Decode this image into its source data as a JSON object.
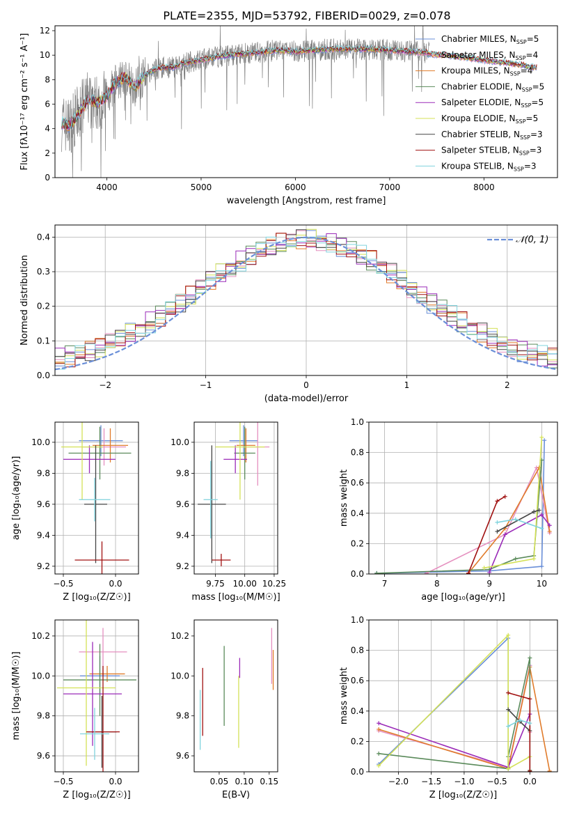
{
  "figure": {
    "title": "PLATE=2355, MJD=53792, FIBERID=0029, z=0.078"
  },
  "chart_data": [
    {
      "id": "spectrum",
      "type": "line",
      "xlabel": "wavelength [Angstrom, rest frame]",
      "ylabel": "Flux [fλ10⁻¹⁷ erg cm⁻² s⁻¹ A⁻¹]",
      "xlim": [
        3450,
        8780
      ],
      "ylim": [
        0,
        12.4
      ],
      "xticks": [
        4000,
        5000,
        6000,
        7000,
        8000
      ],
      "yticks": [
        0,
        2,
        4,
        6,
        8,
        10,
        12
      ],
      "grid": false,
      "legend_position": "right",
      "data_series": {
        "name": "data",
        "color": "#808080"
      },
      "continuum": {
        "x": [
          3520,
          3600,
          3700,
          3800,
          3900,
          4000,
          4100,
          4200,
          4300,
          4400,
          4500,
          4600,
          4700,
          4800,
          5000,
          5200,
          5400,
          5600,
          5800,
          6000,
          6200,
          6400,
          6600,
          6800,
          7000,
          7200,
          7400
        ],
        "y": [
          4.5,
          4.2,
          5.2,
          6.4,
          6.1,
          6.6,
          7.8,
          8.2,
          7.4,
          8.3,
          8.8,
          9.0,
          9.0,
          9.3,
          9.6,
          9.9,
          10.1,
          10.2,
          10.4,
          10.3,
          10.4,
          10.5,
          10.5,
          10.5,
          10.4,
          10.3,
          10.2
        ]
      },
      "model_extension": {
        "x": [
          7400,
          7600,
          7800,
          8000,
          8200,
          8400,
          8500
        ],
        "y": [
          10.1,
          10.0,
          9.8,
          9.6,
          9.4,
          9.2,
          9.0
        ]
      },
      "legend": [
        {
          "label": "Chabrier MILES, N",
          "sub": "SSP",
          "suffix": "=5",
          "color": "#6a8fd8"
        },
        {
          "label": "Salpeter MILES, N",
          "sub": "SSP",
          "suffix": "=4",
          "color": "#e58fbf"
        },
        {
          "label": "Kroupa MILES, N",
          "sub": "SSP",
          "suffix": "=4",
          "color": "#e07b2a"
        },
        {
          "label": "Chabrier ELODIE, N",
          "sub": "SSP",
          "suffix": "=5",
          "color": "#5a8a5a"
        },
        {
          "label": "Salpeter ELODIE, N",
          "sub": "SSP",
          "suffix": "=5",
          "color": "#9a2ab8"
        },
        {
          "label": "Kroupa ELODIE, N",
          "sub": "SSP",
          "suffix": "=5",
          "color": "#d4e157"
        },
        {
          "label": "Chabrier STELIB, N",
          "sub": "SSP",
          "suffix": "=3",
          "color": "#444444"
        },
        {
          "label": "Salpeter STELIB, N",
          "sub": "SSP",
          "suffix": "=3",
          "color": "#a01010"
        },
        {
          "label": "Kroupa STELIB, N",
          "sub": "SSP",
          "suffix": "=3",
          "color": "#7fd3dd"
        }
      ]
    },
    {
      "id": "residuals",
      "type": "line",
      "xlabel": "(data-model)/error",
      "ylabel": "Normed distribution",
      "xlim": [
        -2.5,
        2.5
      ],
      "ylim": [
        0,
        0.435
      ],
      "xticks": [
        -2,
        -1,
        0,
        1,
        2
      ],
      "xtick_labels": [
        "−2",
        "−1",
        "0",
        "1",
        "2"
      ],
      "yticks": [
        0.0,
        0.1,
        0.2,
        0.3,
        0.4
      ],
      "ytick_labels": [
        "0.0",
        "0.1",
        "0.2",
        "0.3",
        "0.4"
      ],
      "grid": true,
      "legend_position": "top-right",
      "gaussian": {
        "label": "𝒩(0, 1)",
        "color": "#6a8fd8",
        "mean": 0,
        "sigma": 1
      },
      "bin_width": 0.1,
      "hist_series": [
        {
          "color": "#6a8fd8",
          "offset": 0.2
        },
        {
          "color": "#e58fbf",
          "offset": 1.1
        },
        {
          "color": "#e07b2a",
          "offset": 2.3
        },
        {
          "color": "#5a8a5a",
          "offset": 3.7
        },
        {
          "color": "#9a2ab8",
          "offset": 4.4
        },
        {
          "color": "#d4e157",
          "offset": 5.9
        },
        {
          "color": "#444444",
          "offset": 6.6
        },
        {
          "color": "#a01010",
          "offset": 7.8
        },
        {
          "color": "#7fd3dd",
          "offset": 8.5
        }
      ]
    },
    {
      "id": "age-vs-Z",
      "type": "scatter",
      "xlabel": "Z [log₁₀(Z/Z☉)]",
      "ylabel": "age  [log₁₀(age/yr)]",
      "xlim": [
        -0.58,
        0.22
      ],
      "ylim": [
        9.15,
        10.13
      ],
      "xticks": [
        -0.5,
        0.0
      ],
      "xtick_labels": [
        "−0.5",
        "0.0"
      ],
      "yticks": [
        9.2,
        9.4,
        9.6,
        9.8,
        10.0
      ],
      "ytick_labels": [
        "9.2",
        "9.4",
        "9.6",
        "9.8",
        "10.0"
      ],
      "grid": true,
      "points": [
        {
          "x": -0.14,
          "y": 10.01,
          "xerr": 0.21,
          "yerr": 0.1,
          "color": "#6a8fd8"
        },
        {
          "x": -0.11,
          "y": 9.97,
          "xerr": 0.21,
          "yerr": 0.12,
          "color": "#e58fbf"
        },
        {
          "x": -0.05,
          "y": 9.98,
          "xerr": 0.17,
          "yerr": 0.11,
          "color": "#e07b2a"
        },
        {
          "x": -0.15,
          "y": 9.93,
          "xerr": 0.3,
          "yerr": 0.17,
          "color": "#5a8a5a"
        },
        {
          "x": -0.25,
          "y": 9.89,
          "xerr": 0.25,
          "yerr": 0.09,
          "color": "#9a2ab8"
        },
        {
          "x": -0.32,
          "y": 9.97,
          "xerr": 0.2,
          "yerr": 0.34,
          "color": "#d4e157"
        },
        {
          "x": -0.19,
          "y": 9.6,
          "xerr": 0.11,
          "yerr": 0.38,
          "color": "#444444"
        },
        {
          "x": -0.13,
          "y": 9.24,
          "xerr": 0.26,
          "yerr": 0.12,
          "color": "#a01010"
        },
        {
          "x": -0.2,
          "y": 9.63,
          "xerr": 0.15,
          "yerr": 0.14,
          "color": "#7fd3dd"
        }
      ]
    },
    {
      "id": "age-vs-mass",
      "type": "scatter",
      "xlabel": "mass [log₁₀(M/M☉)]",
      "xlim": [
        9.57,
        10.28
      ],
      "ylim": [
        9.15,
        10.13
      ],
      "xticks": [
        9.75,
        10.0,
        10.25
      ],
      "xtick_labels": [
        "9.75",
        "10.00",
        "10.25"
      ],
      "yticks": [
        9.2,
        9.4,
        9.6,
        9.8,
        10.0
      ],
      "ytick_labels": [
        "9.2",
        "9.4",
        "9.6",
        "9.8",
        "10.0"
      ],
      "grid": true,
      "points": [
        {
          "x": 9.99,
          "y": 10.01,
          "xerr": 0.12,
          "yerr": 0.1,
          "color": "#6a8fd8"
        },
        {
          "x": 10.11,
          "y": 9.97,
          "xerr": 0.1,
          "yerr": 0.25,
          "color": "#e58fbf"
        },
        {
          "x": 10.01,
          "y": 9.98,
          "xerr": 0.08,
          "yerr": 0.11,
          "color": "#e07b2a"
        },
        {
          "x": 10.0,
          "y": 9.93,
          "xerr": 0.09,
          "yerr": 0.17,
          "color": "#5a8a5a"
        },
        {
          "x": 9.92,
          "y": 9.89,
          "xerr": 0.1,
          "yerr": 0.09,
          "color": "#9a2ab8"
        },
        {
          "x": 9.96,
          "y": 9.97,
          "xerr": 0.21,
          "yerr": 0.34,
          "color": "#d4e157"
        },
        {
          "x": 9.72,
          "y": 9.6,
          "xerr": 0.12,
          "yerr": 0.38,
          "color": "#444444"
        },
        {
          "x": 9.8,
          "y": 9.24,
          "xerr": 0.08,
          "yerr": 0.04,
          "color": "#a01010"
        },
        {
          "x": 9.71,
          "y": 9.63,
          "xerr": 0.06,
          "yerr": 0.25,
          "color": "#7fd3dd"
        }
      ]
    },
    {
      "id": "weight-vs-age",
      "type": "line",
      "xlabel": "age  [log₁₀(age/yr)]",
      "ylabel": "mass weight",
      "xlim": [
        6.7,
        10.3
      ],
      "ylim": [
        0,
        1.0
      ],
      "xticks": [
        7,
        8,
        9,
        10
      ],
      "yticks": [
        0.0,
        0.2,
        0.4,
        0.6,
        0.8,
        1.0
      ],
      "ytick_labels": [
        "0.0",
        "0.2",
        "0.4",
        "0.6",
        "0.8",
        "1.0"
      ],
      "grid": true,
      "series": [
        {
          "color": "#6a8fd8",
          "x": [
            6.85,
            9.0,
            10.0,
            10.05
          ],
          "y": [
            0.005,
            0.02,
            0.05,
            0.88
          ]
        },
        {
          "color": "#e58fbf",
          "x": [
            7.8,
            9.3,
            9.9,
            10.15
          ],
          "y": [
            0.005,
            0.26,
            0.7,
            0.27
          ]
        },
        {
          "color": "#e07b2a",
          "x": [
            8.6,
            9.3,
            9.95,
            10.15
          ],
          "y": [
            0.005,
            0.3,
            0.7,
            0.28
          ]
        },
        {
          "color": "#5a8a5a",
          "x": [
            6.85,
            9.0,
            9.5,
            9.85,
            10.0
          ],
          "y": [
            0.005,
            0.03,
            0.1,
            0.12,
            0.75
          ]
        },
        {
          "color": "#9a2ab8",
          "x": [
            9.0,
            9.3,
            10.0,
            10.15
          ],
          "y": [
            0.01,
            0.26,
            0.39,
            0.32
          ]
        },
        {
          "color": "#d4e157",
          "x": [
            8.9,
            9.85,
            10.0
          ],
          "y": [
            0.04,
            0.1,
            0.9
          ]
        },
        {
          "color": "#444444",
          "x": [
            9.15,
            9.85,
            9.95
          ],
          "y": [
            0.28,
            0.41,
            0.42
          ]
        },
        {
          "color": "#a01010",
          "x": [
            8.6,
            9.15,
            9.3
          ],
          "y": [
            0.005,
            0.48,
            0.51
          ]
        },
        {
          "color": "#7fd3dd",
          "x": [
            9.15,
            9.5,
            10.0
          ],
          "y": [
            0.34,
            0.36,
            0.3
          ]
        }
      ]
    },
    {
      "id": "mass-vs-Z",
      "type": "scatter",
      "xlabel": "Z [log₁₀(Z/Z☉)]",
      "ylabel": "mass [log₁₀(M/M☉)]",
      "xlim": [
        -0.58,
        0.22
      ],
      "ylim": [
        9.52,
        10.28
      ],
      "xticks": [
        -0.5,
        0.0
      ],
      "xtick_labels": [
        "−0.5",
        "0.0"
      ],
      "yticks": [
        9.6,
        9.8,
        10.0,
        10.2
      ],
      "ytick_labels": [
        "9.6",
        "9.8",
        "10.0",
        "10.2"
      ],
      "grid": true,
      "points": [
        {
          "x": -0.15,
          "y": 10.0,
          "xerr": 0.19,
          "yerr": 0.1,
          "color": "#6a8fd8"
        },
        {
          "x": -0.12,
          "y": 10.12,
          "xerr": 0.23,
          "yerr": 0.12,
          "color": "#e58fbf"
        },
        {
          "x": -0.08,
          "y": 10.01,
          "xerr": 0.17,
          "yerr": 0.04,
          "color": "#e07b2a"
        },
        {
          "x": -0.15,
          "y": 9.98,
          "xerr": 0.35,
          "yerr": 0.18,
          "color": "#5a8a5a"
        },
        {
          "x": -0.22,
          "y": 9.91,
          "xerr": 0.28,
          "yerr": 0.26,
          "color": "#9a2ab8"
        },
        {
          "x": -0.28,
          "y": 9.94,
          "xerr": 0.28,
          "yerr": 0.39,
          "color": "#d4e157"
        },
        {
          "x": -0.13,
          "y": 9.72,
          "xerr": 0.14,
          "yerr": 0.18,
          "color": "#444444"
        },
        {
          "x": -0.12,
          "y": 9.72,
          "xerr": 0.16,
          "yerr": 0.33,
          "color": "#a01010"
        },
        {
          "x": -0.2,
          "y": 9.71,
          "xerr": 0.14,
          "yerr": 0.13,
          "color": "#7fd3dd"
        }
      ]
    },
    {
      "id": "mass-vs-ebv",
      "type": "scatter",
      "xlabel": "E(B-V)",
      "xlim": [
        0.0,
        0.167
      ],
      "ylim": [
        9.52,
        10.28
      ],
      "xticks": [
        0.05,
        0.1,
        0.15
      ],
      "xtick_labels": [
        "0.05",
        "0.10",
        "0.15"
      ],
      "yticks": [
        9.6,
        9.8,
        10.0,
        10.2
      ],
      "ytick_labels": [
        "9.6",
        "9.8",
        "10.0",
        "10.2"
      ],
      "grid": false,
      "points": [
        {
          "x": 0.012,
          "y": 9.78,
          "yerr": 0.15,
          "color": "#7fd3dd"
        },
        {
          "x": 0.017,
          "y": 9.87,
          "yerr": 0.17,
          "color": "#a01010"
        },
        {
          "x": 0.06,
          "y": 9.95,
          "yerr": 0.2,
          "color": "#5a8a5a"
        },
        {
          "x": 0.089,
          "y": 9.82,
          "yerr": 0.18,
          "color": "#d4e157"
        },
        {
          "x": 0.091,
          "y": 10.04,
          "yerr": 0.05,
          "color": "#9a2ab8"
        },
        {
          "x": 0.155,
          "y": 10.1,
          "yerr": 0.14,
          "color": "#e58fbf"
        },
        {
          "x": 0.158,
          "y": 10.03,
          "yerr": 0.1,
          "color": "#e07b2a"
        }
      ]
    },
    {
      "id": "weight-vs-Z",
      "type": "line",
      "xlabel": "Z [log₁₀(Z/Z☉)]",
      "ylabel": "mass weight",
      "xlim": [
        -2.45,
        0.42
      ],
      "ylim": [
        0,
        1.0
      ],
      "xticks": [
        -2.0,
        -1.5,
        -1.0,
        -0.5,
        0.0
      ],
      "xtick_labels": [
        "−2.0",
        "−1.5",
        "−1.0",
        "−0.5",
        "0.0"
      ],
      "yticks": [
        0.0,
        0.2,
        0.4,
        0.6,
        0.8,
        1.0
      ],
      "ytick_labels": [
        "0.0",
        "0.2",
        "0.4",
        "0.6",
        "0.8",
        "1.0"
      ],
      "grid": true,
      "series": [
        {
          "color": "#6a8fd8",
          "x": [
            -2.3,
            -0.33,
            -0.33,
            0.0
          ],
          "y": [
            0.05,
            0.88,
            0.02,
            0.7
          ]
        },
        {
          "color": "#e58fbf",
          "x": [
            -2.3,
            -0.33,
            0.0,
            0.0
          ],
          "y": [
            0.27,
            0.03,
            0.7,
            0.26
          ]
        },
        {
          "color": "#e07b2a",
          "x": [
            -2.3,
            -0.33,
            0.0,
            0.3
          ],
          "y": [
            0.28,
            0.02,
            0.69,
            0.005
          ]
        },
        {
          "color": "#5a8a5a",
          "x": [
            -2.3,
            -0.33,
            -0.33,
            0.0,
            0.0
          ],
          "y": [
            0.12,
            0.02,
            0.1,
            0.75,
            0.01
          ]
        },
        {
          "color": "#9a2ab8",
          "x": [
            -2.3,
            -0.33,
            0.0
          ],
          "y": [
            0.32,
            0.03,
            0.38
          ]
        },
        {
          "color": "#d4e157",
          "x": [
            -2.3,
            -0.33,
            -0.33,
            0.0
          ],
          "y": [
            0.04,
            0.9,
            0.02,
            0.1
          ]
        },
        {
          "color": "#444444",
          "x": [
            -0.33,
            -0.15,
            0.0
          ],
          "y": [
            0.41,
            0.33,
            0.27
          ]
        },
        {
          "color": "#a01010",
          "x": [
            -0.33,
            0.0,
            0.0
          ],
          "y": [
            0.52,
            0.48,
            0.005
          ]
        },
        {
          "color": "#7fd3dd",
          "x": [
            -0.33,
            -0.15,
            0.0
          ],
          "y": [
            0.3,
            0.34,
            0.32
          ]
        }
      ]
    }
  ]
}
